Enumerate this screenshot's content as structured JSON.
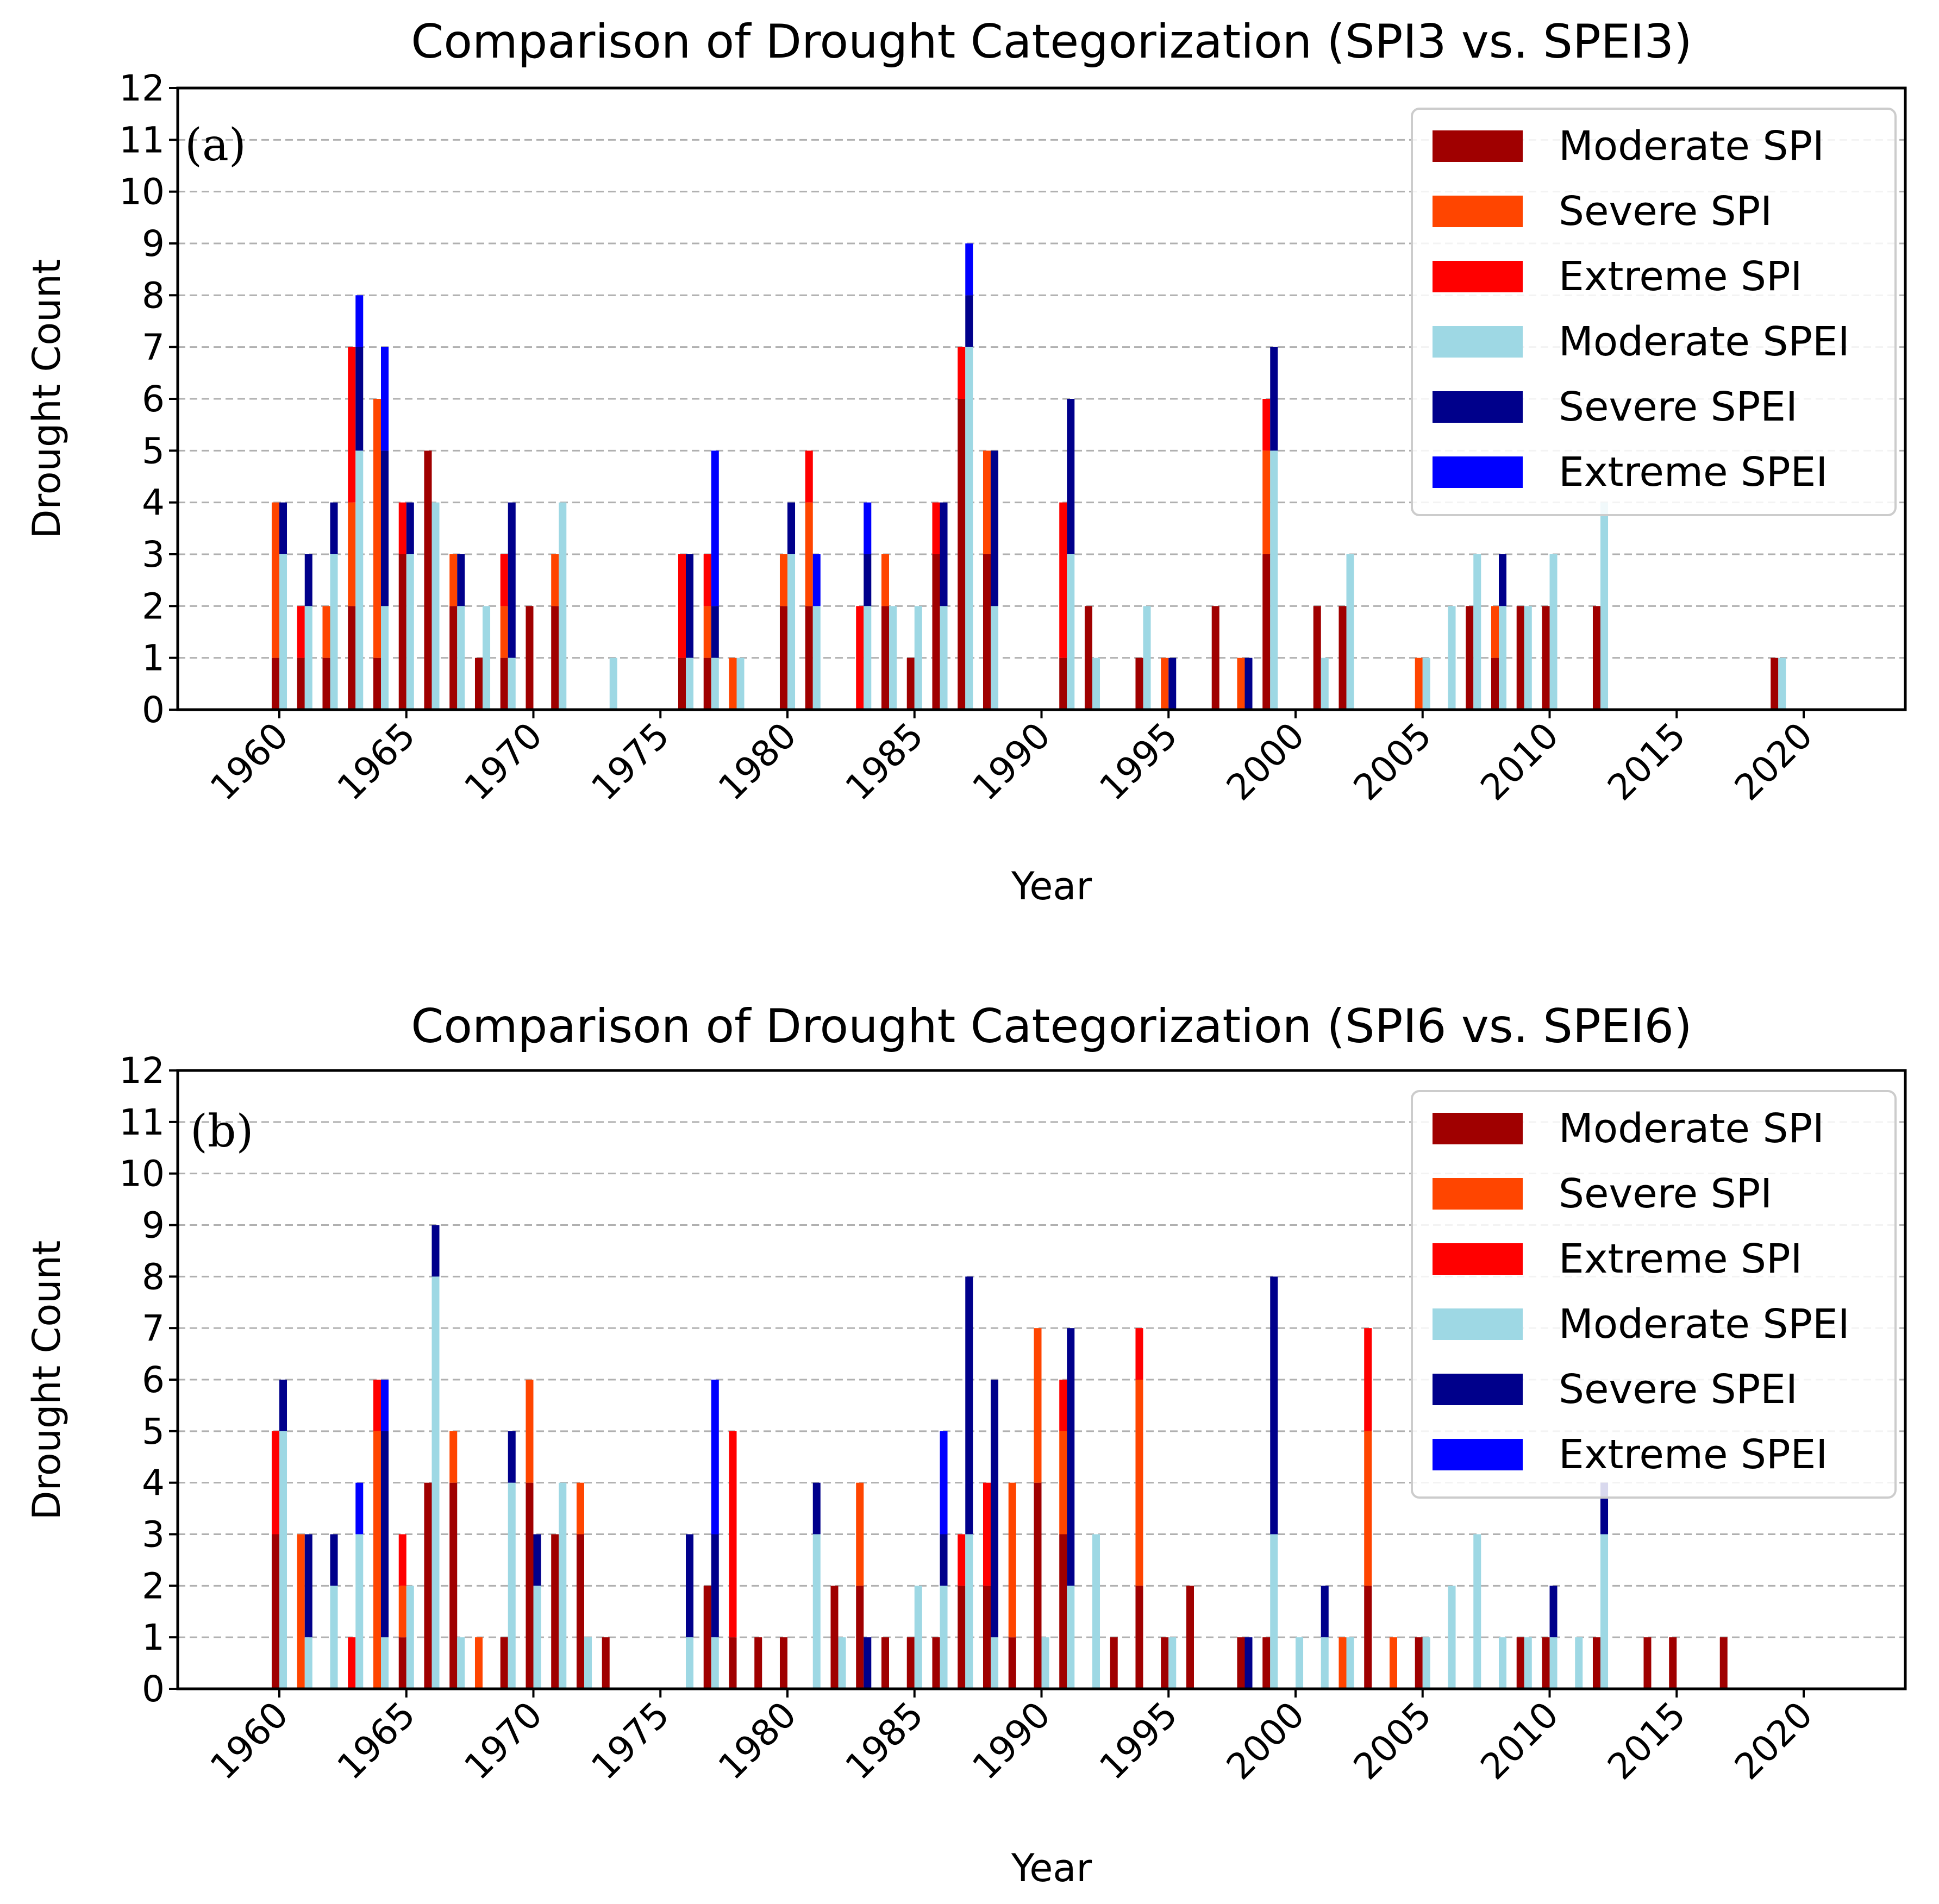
{
  "colors": {
    "moderate_spi": "#a00000",
    "severe_spi": "#ff4500",
    "extreme_spi": "#ff0000",
    "moderate_spei": "#9ed8e4",
    "severe_spei": "#00008b",
    "extreme_spei": "#0000ff"
  },
  "chart_data": [
    {
      "type": "bar",
      "stacked": true,
      "panel_label": "(a)",
      "title": "Comparison of Drought Categorization (SPI3 vs. SPEI3)",
      "xlabel": "Year",
      "ylabel": "Drought Count",
      "xlim": [
        1956,
        2024
      ],
      "ylim": [
        0,
        12
      ],
      "yticks": [
        "0",
        "1",
        "2",
        "3",
        "4",
        "5",
        "6",
        "7",
        "8",
        "9",
        "10",
        "11",
        "12"
      ],
      "xticks": [
        "1960",
        "1965",
        "1970",
        "1975",
        "1980",
        "1985",
        "1990",
        "1995",
        "2000",
        "2005",
        "2010",
        "2015",
        "2020"
      ],
      "grid": "y",
      "legend_position": "top-right",
      "legend": [
        "Moderate SPI",
        "Severe SPI",
        "Extreme SPI",
        "Moderate SPEI",
        "Severe SPEI",
        "Extreme SPEI"
      ],
      "spi": {
        "years": [
          1960,
          1961,
          1962,
          1963,
          1964,
          1965,
          1966,
          1967,
          1968,
          1969,
          1970,
          1971,
          1976,
          1977,
          1978,
          1980,
          1981,
          1983,
          1984,
          1985,
          1986,
          1987,
          1988,
          1991,
          1992,
          1994,
          1995,
          1997,
          1998,
          1999,
          2001,
          2002,
          2005,
          2007,
          2008,
          2009,
          2010,
          2012,
          2019
        ],
        "moderate": [
          1,
          1,
          1,
          2,
          1,
          3,
          5,
          2,
          1,
          1,
          2,
          2,
          1,
          1,
          0,
          2,
          2,
          0,
          2,
          1,
          3,
          6,
          3,
          1,
          2,
          1,
          0,
          2,
          0,
          3,
          2,
          2,
          0,
          2,
          1,
          2,
          2,
          2,
          1
        ],
        "severe": [
          3,
          0,
          1,
          2,
          5,
          0,
          0,
          1,
          0,
          1,
          0,
          1,
          0,
          1,
          1,
          1,
          2,
          0,
          1,
          0,
          0,
          0,
          2,
          0,
          0,
          0,
          1,
          0,
          1,
          2,
          0,
          0,
          1,
          0,
          1,
          0,
          0,
          0,
          0
        ],
        "extreme": [
          0,
          1,
          0,
          3,
          0,
          1,
          0,
          0,
          0,
          1,
          0,
          0,
          2,
          1,
          0,
          0,
          1,
          2,
          0,
          0,
          1,
          1,
          0,
          3,
          0,
          0,
          0,
          0,
          0,
          1,
          0,
          0,
          0,
          0,
          0,
          0,
          0,
          0,
          0
        ]
      },
      "spei": {
        "years": [
          1960,
          1961,
          1962,
          1963,
          1964,
          1965,
          1966,
          1967,
          1968,
          1969,
          1970,
          1971,
          1973,
          1976,
          1977,
          1978,
          1980,
          1981,
          1983,
          1984,
          1985,
          1986,
          1987,
          1988,
          1991,
          1992,
          1994,
          1995,
          1998,
          1999,
          2001,
          2002,
          2005,
          2006,
          2007,
          2008,
          2009,
          2010,
          2012,
          2019
        ],
        "moderate": [
          3,
          2,
          3,
          5,
          2,
          3,
          4,
          2,
          2,
          1,
          0,
          4,
          1,
          1,
          1,
          1,
          3,
          2,
          2,
          2,
          2,
          2,
          7,
          2,
          3,
          1,
          2,
          0,
          0,
          5,
          1,
          3,
          1,
          2,
          3,
          2,
          2,
          3,
          4,
          1
        ],
        "severe": [
          1,
          1,
          1,
          2,
          3,
          1,
          0,
          1,
          0,
          3,
          0,
          0,
          0,
          2,
          1,
          0,
          1,
          0,
          1,
          0,
          0,
          2,
          1,
          3,
          3,
          0,
          0,
          1,
          1,
          2,
          0,
          0,
          0,
          0,
          0,
          1,
          0,
          0,
          0,
          0
        ],
        "extreme": [
          0,
          0,
          0,
          1,
          2,
          0,
          0,
          0,
          0,
          0,
          0,
          0,
          0,
          0,
          3,
          0,
          0,
          1,
          1,
          0,
          0,
          0,
          1,
          0,
          0,
          0,
          0,
          0,
          0,
          0,
          0,
          0,
          0,
          0,
          0,
          0,
          0,
          0,
          0,
          0
        ]
      }
    },
    {
      "type": "bar",
      "stacked": true,
      "panel_label": "(b)",
      "title": "Comparison of Drought Categorization (SPI6 vs. SPEI6)",
      "xlabel": "Year",
      "ylabel": "Drought Count",
      "xlim": [
        1956,
        2024
      ],
      "ylim": [
        0,
        12
      ],
      "yticks": [
        "0",
        "1",
        "2",
        "3",
        "4",
        "5",
        "6",
        "7",
        "8",
        "9",
        "10",
        "11",
        "12"
      ],
      "xticks": [
        "1960",
        "1965",
        "1970",
        "1975",
        "1980",
        "1985",
        "1990",
        "1995",
        "2000",
        "2005",
        "2010",
        "2015",
        "2020"
      ],
      "grid": "y",
      "legend_position": "top-right",
      "legend": [
        "Moderate SPI",
        "Severe SPI",
        "Extreme SPI",
        "Moderate SPEI",
        "Severe SPEI",
        "Extreme SPEI"
      ],
      "spi": {
        "years": [
          1960,
          1961,
          1963,
          1964,
          1965,
          1966,
          1967,
          1968,
          1969,
          1970,
          1971,
          1972,
          1973,
          1977,
          1978,
          1979,
          1980,
          1982,
          1983,
          1984,
          1985,
          1986,
          1987,
          1988,
          1989,
          1990,
          1991,
          1993,
          1994,
          1995,
          1996,
          1998,
          1999,
          2002,
          2003,
          2004,
          2005,
          2009,
          2010,
          2012,
          2014,
          2015,
          2017
        ],
        "moderate": [
          3,
          0,
          0,
          0,
          1,
          4,
          4,
          0,
          1,
          4,
          3,
          3,
          1,
          2,
          1,
          1,
          1,
          2,
          2,
          1,
          1,
          1,
          2,
          2,
          1,
          4,
          3,
          1,
          2,
          1,
          2,
          1,
          1,
          0,
          2,
          0,
          1,
          1,
          1,
          1,
          1,
          1,
          1
        ],
        "severe": [
          0,
          3,
          0,
          5,
          1,
          0,
          1,
          1,
          0,
          2,
          0,
          1,
          0,
          0,
          0,
          0,
          0,
          0,
          2,
          0,
          0,
          0,
          0,
          0,
          3,
          3,
          2,
          0,
          4,
          0,
          0,
          0,
          0,
          1,
          3,
          1,
          0,
          0,
          0,
          0,
          0,
          0,
          0
        ],
        "extreme": [
          2,
          0,
          1,
          1,
          1,
          0,
          0,
          0,
          0,
          0,
          0,
          0,
          0,
          0,
          4,
          0,
          0,
          0,
          0,
          0,
          0,
          0,
          1,
          2,
          0,
          0,
          1,
          0,
          1,
          0,
          0,
          0,
          0,
          0,
          2,
          0,
          0,
          0,
          0,
          0,
          0,
          0,
          0
        ]
      },
      "spei": {
        "years": [
          1960,
          1961,
          1962,
          1963,
          1964,
          1965,
          1966,
          1967,
          1969,
          1970,
          1971,
          1972,
          1976,
          1977,
          1981,
          1982,
          1983,
          1985,
          1986,
          1987,
          1988,
          1990,
          1991,
          1992,
          1995,
          1998,
          1999,
          2000,
          2001,
          2002,
          2005,
          2006,
          2007,
          2008,
          2009,
          2010,
          2011,
          2012
        ],
        "moderate": [
          5,
          1,
          2,
          3,
          1,
          2,
          8,
          1,
          4,
          2,
          4,
          1,
          1,
          1,
          3,
          1,
          0,
          2,
          2,
          3,
          1,
          1,
          2,
          3,
          1,
          0,
          3,
          1,
          1,
          1,
          1,
          2,
          3,
          1,
          1,
          1,
          1,
          3
        ],
        "severe": [
          1,
          2,
          1,
          0,
          4,
          0,
          1,
          0,
          1,
          1,
          0,
          0,
          2,
          2,
          1,
          0,
          1,
          0,
          1,
          5,
          5,
          0,
          5,
          0,
          0,
          1,
          5,
          0,
          1,
          0,
          0,
          0,
          0,
          0,
          0,
          1,
          0,
          1
        ],
        "extreme": [
          0,
          0,
          0,
          1,
          1,
          0,
          0,
          0,
          0,
          0,
          0,
          0,
          0,
          3,
          0,
          0,
          0,
          0,
          2,
          0,
          0,
          0,
          0,
          0,
          0,
          0,
          0,
          0,
          0,
          0,
          0,
          0,
          0,
          0,
          0,
          0,
          0,
          0
        ]
      }
    }
  ]
}
